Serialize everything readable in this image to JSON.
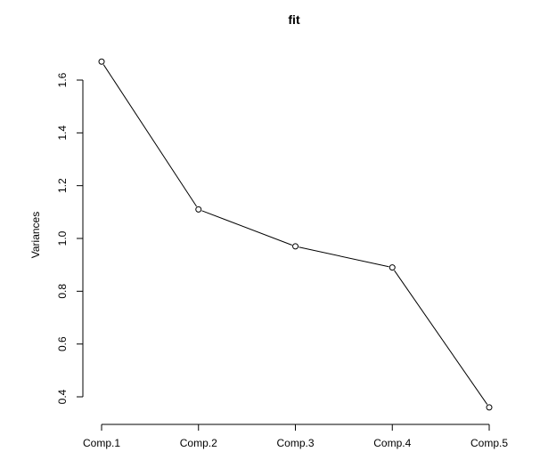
{
  "chart_data": {
    "type": "line",
    "title": "fit",
    "xlabel": "",
    "ylabel": "Variances",
    "categories": [
      "Comp.1",
      "Comp.2",
      "Comp.3",
      "Comp.4",
      "Comp.5"
    ],
    "values": [
      1.67,
      1.11,
      0.97,
      0.89,
      0.36
    ],
    "ylim": [
      0.4,
      1.6
    ],
    "yticks": [
      "0.4",
      "0.6",
      "0.8",
      "1.0",
      "1.2",
      "1.4",
      "1.6"
    ],
    "markers": "open-circle",
    "grid": false,
    "legend": "none",
    "line_color": "#000000"
  }
}
